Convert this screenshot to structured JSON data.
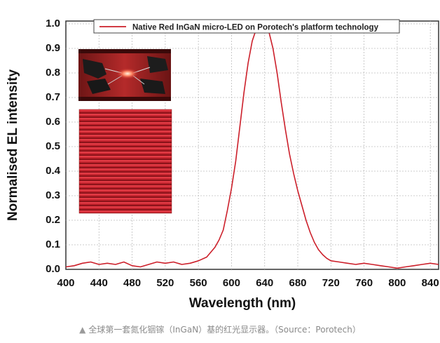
{
  "chart_data": {
    "type": "line",
    "title": "",
    "xlabel": "Wavelength (nm)",
    "ylabel": "Normalised EL intensity",
    "xlim": [
      400,
      850
    ],
    "ylim": [
      0.0,
      1.0
    ],
    "x_ticks": [
      "400",
      "440",
      "480",
      "520",
      "560",
      "600",
      "640",
      "680",
      "720",
      "760",
      "800",
      "840"
    ],
    "y_ticks": [
      "0.0",
      "0.1",
      "0.2",
      "0.3",
      "0.4",
      "0.5",
      "0.6",
      "0.7",
      "0.8",
      "0.9",
      "1.0"
    ],
    "grid": true,
    "legend_position": "top",
    "series": [
      {
        "name": "Native Red InGaN micro-LED on Porotech's platform technology",
        "color": "#cc1f2a",
        "x": [
          400,
          410,
          420,
          430,
          440,
          450,
          460,
          470,
          480,
          490,
          500,
          510,
          520,
          530,
          540,
          550,
          560,
          570,
          575,
          580,
          585,
          590,
          595,
          600,
          605,
          610,
          615,
          620,
          625,
          630,
          635,
          640,
          645,
          650,
          655,
          660,
          665,
          670,
          675,
          680,
          685,
          690,
          695,
          700,
          705,
          710,
          715,
          720,
          730,
          740,
          750,
          760,
          770,
          780,
          790,
          800,
          810,
          820,
          830,
          840,
          850
        ],
        "y": [
          0.01,
          0.015,
          0.025,
          0.03,
          0.02,
          0.025,
          0.02,
          0.03,
          0.015,
          0.01,
          0.02,
          0.03,
          0.025,
          0.03,
          0.02,
          0.025,
          0.035,
          0.05,
          0.07,
          0.09,
          0.12,
          0.16,
          0.24,
          0.33,
          0.44,
          0.58,
          0.72,
          0.84,
          0.93,
          0.98,
          1.0,
          0.995,
          0.97,
          0.9,
          0.8,
          0.68,
          0.57,
          0.47,
          0.39,
          0.32,
          0.26,
          0.2,
          0.15,
          0.11,
          0.08,
          0.06,
          0.045,
          0.035,
          0.03,
          0.025,
          0.02,
          0.025,
          0.02,
          0.015,
          0.01,
          0.005,
          0.01,
          0.015,
          0.02,
          0.025,
          0.02
        ]
      }
    ]
  },
  "insets": {
    "top_image": "micro-LED probe station photo",
    "bottom_image": "red micro-LED array photo"
  },
  "caption": {
    "marker": "▲",
    "text": "全球第一套氮化铟镓（InGaN）基的红光显示器。（Source：Porotech）"
  }
}
